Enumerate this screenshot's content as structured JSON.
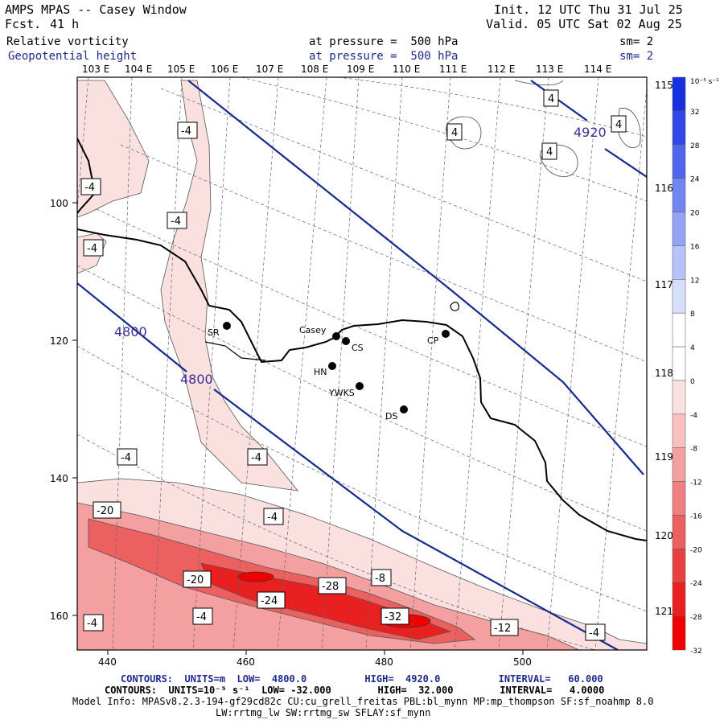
{
  "header": {
    "title": "AMPS MPAS -- Casey Window",
    "fcst_label": "Fcst.",
    "fcst_value": "41 h",
    "init": "Init. 12 UTC Thu 31 Jul 25",
    "valid": "Valid. 05 UTC Sat 02 Aug 25",
    "field1_name": "Relative vorticity",
    "field1_level": "at pressure =  500 hPa",
    "field1_sm": "sm= 2",
    "field2_name": "Geopotential height",
    "field2_level": "at pressure =  500 hPa",
    "field2_sm": "sm= 2"
  },
  "map": {
    "lon_top_labels": [
      "103 E",
      "104 E",
      "105 E",
      "106 E",
      "107 E",
      "108 E",
      "109 E",
      "110 E",
      "111 E",
      "112 E",
      "113 E",
      "114 E"
    ],
    "lon_right_labels": [
      "115 E",
      "116 E",
      "117 E",
      "118 E",
      "119 E",
      "120 E",
      "121 E"
    ],
    "y_ticks": [
      "100",
      "120",
      "140",
      "160"
    ],
    "x_ticks": [
      "440",
      "460",
      "480",
      "500"
    ],
    "stations": [
      {
        "name": "SR"
      },
      {
        "name": "Casey"
      },
      {
        "name": "CS"
      },
      {
        "name": "CP"
      },
      {
        "name": "HN"
      },
      {
        "name": "YWKS"
      },
      {
        "name": "DS"
      }
    ],
    "height_labels": [
      "4800",
      "4800",
      "4920"
    ],
    "vorticity_labels": [
      "-4",
      "-4",
      "-4",
      "-4",
      "-4",
      "-4",
      "-4",
      "-4",
      "-4",
      "-4",
      "-20",
      "-20",
      "-24",
      "-28",
      "-8",
      "-32",
      "-12",
      "-4",
      "4",
      "4",
      "4",
      "4"
    ]
  },
  "colorbar": {
    "unit": "10⁻⁵ s⁻¹",
    "tick_labels": [
      "32",
      "28",
      "24",
      "20",
      "16",
      "12",
      "8",
      "4",
      "0",
      "-4",
      "-8",
      "-12",
      "-16",
      "-20",
      "-24",
      "-28",
      "-32"
    ],
    "colors": [
      "#1530e0",
      "#3048e8",
      "#4f66ec",
      "#7086f0",
      "#94a4f4",
      "#b6c2f8",
      "#d8dffb",
      "#ffffff",
      "#ffffff",
      "#fbe0e0",
      "#f8c0c0",
      "#f4a0a0",
      "#f08080",
      "#ec6060",
      "#e84040",
      "#e82020",
      "#f00000"
    ]
  },
  "footer": {
    "line1": "CONTOURS:  UNITS=m  LOW=  4800.0          HIGH=  4920.0          INTERVAL=   60.000",
    "line2": "CONTOURS:  UNITS=10⁻⁵ s⁻¹  LOW= -32.000        HIGH=  32.000        INTERVAL=   4.0000",
    "line3": "Model Info: MPASv8.2.3-194-gf29cd82c CU:cu_grell_freitas PBL:bl_mynn MP:mp_thompson SF:sf_noahmp 8.0",
    "line4": "LW:rrtmg_lw SW:rrtmg_sw SFLAY:sf_mynn"
  },
  "colors": {
    "height_contour": "#142a8c",
    "vort_neg_light": "#fbe0e0",
    "vort_neg_strong": "#e82020"
  }
}
